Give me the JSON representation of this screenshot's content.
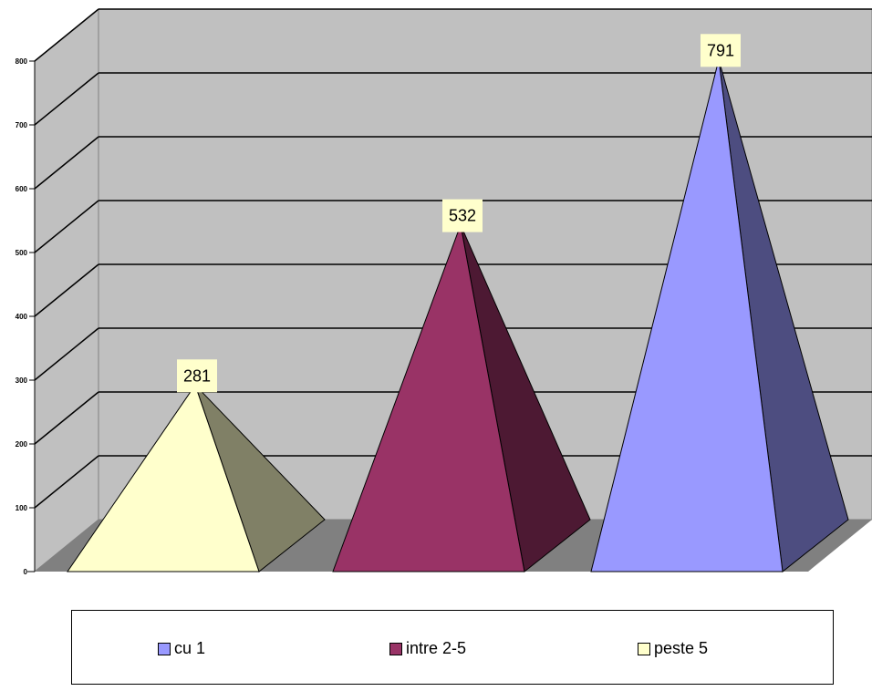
{
  "chart_data": {
    "type": "bar",
    "style": "3d-pyramid",
    "categories": [
      "peste 5",
      "intre 2-5",
      "cu 1"
    ],
    "values": [
      281,
      532,
      791
    ],
    "colors": {
      "peste 5": {
        "front": "#ffffcc",
        "side": "#808066"
      },
      "intre 2-5": {
        "front": "#993366",
        "side": "#4d1933"
      },
      "cu 1": {
        "front": "#9999ff",
        "side": "#4d4d80"
      }
    },
    "wall_color": "#c0c0c0",
    "floor_color": "#808080",
    "y_ticks": [
      "0",
      "100",
      "200",
      "300",
      "400",
      "500",
      "600",
      "700",
      "800"
    ],
    "ylim": [
      0,
      800
    ],
    "grid": true,
    "data_labels": [
      "281",
      "532",
      "791"
    ],
    "title": "",
    "xlabel": "",
    "ylabel": "",
    "legend": {
      "placement": "bottom",
      "items": [
        {
          "label": "cu 1",
          "color": "#9999ff"
        },
        {
          "label": "intre 2-5",
          "color": "#993366"
        },
        {
          "label": "peste 5",
          "color": "#ffffcc"
        }
      ]
    }
  }
}
